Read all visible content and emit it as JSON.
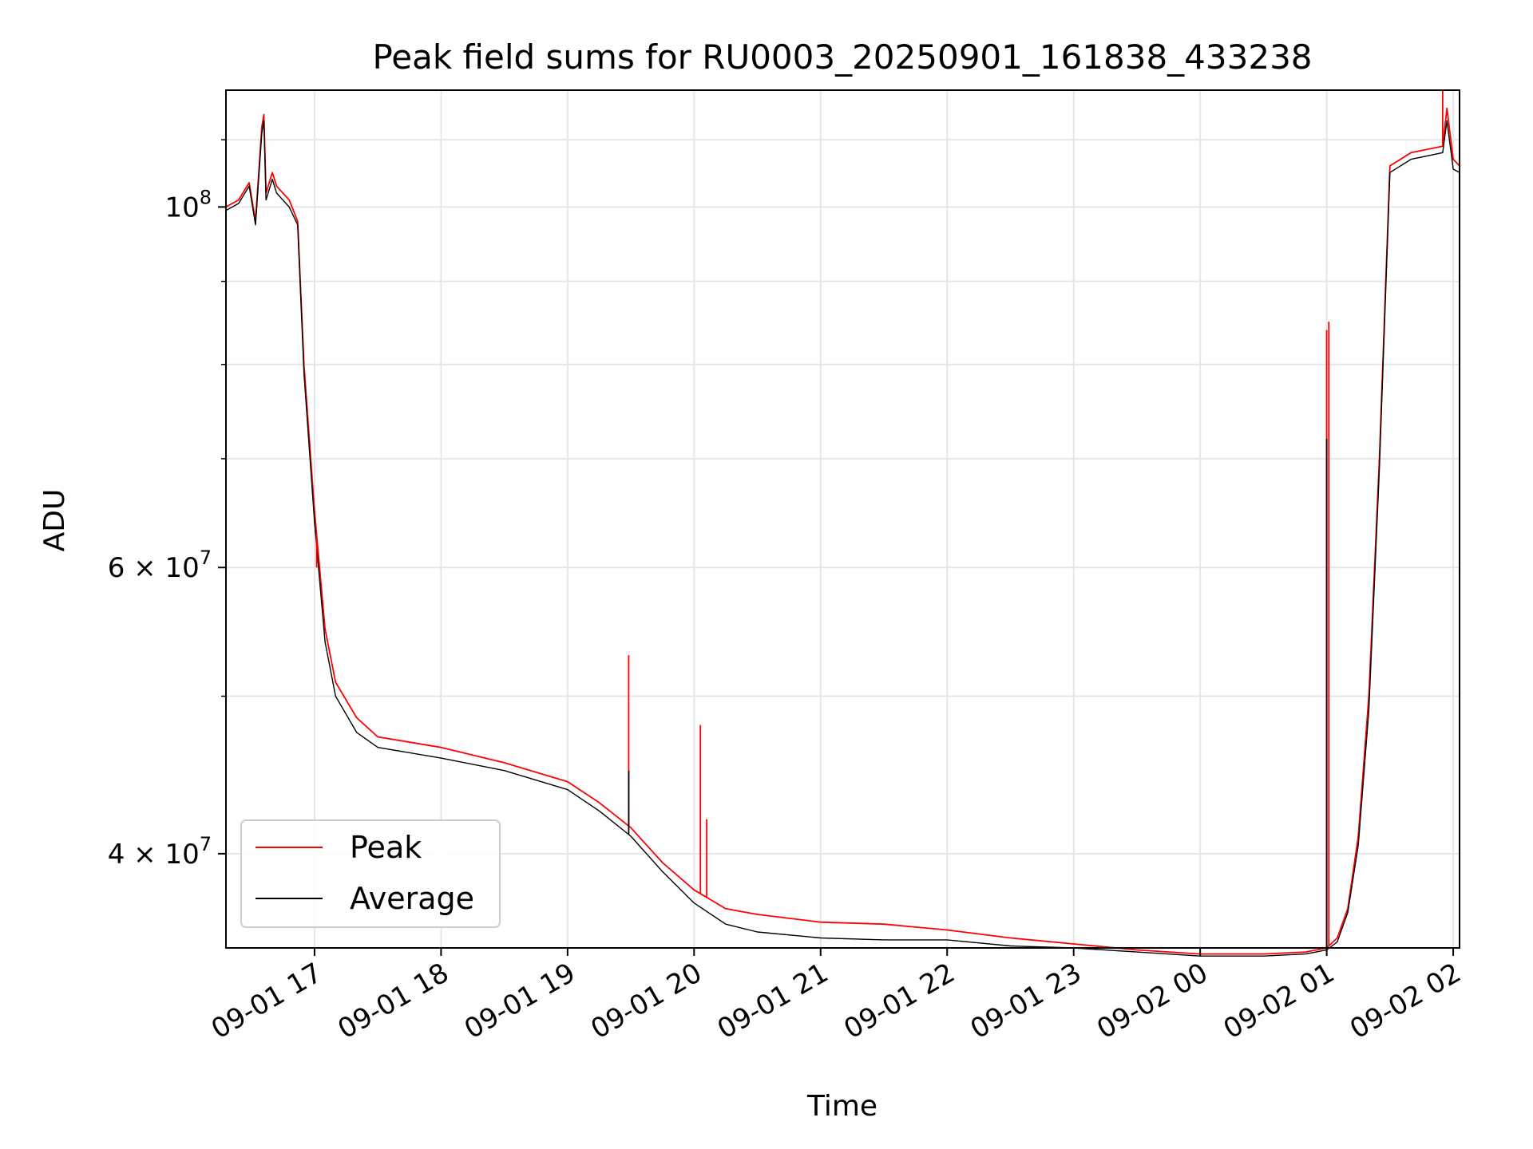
{
  "chart_data": {
    "type": "line",
    "title": "Peak field sums for RU0003_20250901_161838_433238",
    "xlabel": "Time",
    "ylabel": "ADU",
    "y_scale": "log",
    "x_range": [
      "09-01 16:18",
      "09-02 02:03"
    ],
    "y_range": [
      35000000,
      118000000
    ],
    "grid": true,
    "legend_position": "lower-left",
    "x_ticks": [
      "09-01 17",
      "09-01 18",
      "09-01 19",
      "09-01 20",
      "09-01 21",
      "09-01 22",
      "09-01 23",
      "09-02 00",
      "09-02 01",
      "09-02 02"
    ],
    "y_ticks": [
      {
        "value": 100000000,
        "mantissa": "",
        "exponent": "8"
      },
      {
        "value": 60000000,
        "mantissa": "6 × ",
        "exponent": "7"
      },
      {
        "value": 40000000,
        "mantissa": "4 × ",
        "exponent": "7"
      }
    ],
    "series": [
      {
        "name": "Peak",
        "color": "#ff0000",
        "x": [
          "09-01 16:18",
          "09-01 16:24",
          "09-01 16:29",
          "09-01 16:32",
          "09-01 16:35",
          "09-01 16:36",
          "09-01 16:37",
          "09-01 16:40",
          "09-01 16:42",
          "09-01 16:48",
          "09-01 16:52",
          "09-01 16:55",
          "09-01 17:00",
          "09-01 17:05",
          "09-01 17:10",
          "09-01 17:20",
          "09-01 17:30",
          "09-01 18:00",
          "09-01 18:30",
          "09-01 19:00",
          "09-01 19:15",
          "09-01 19:30",
          "09-01 19:45",
          "09-01 20:00",
          "09-01 20:15",
          "09-01 20:30",
          "09-01 21:00",
          "09-01 21:30",
          "09-01 22:00",
          "09-01 22:30",
          "09-01 23:00",
          "09-01 23:30",
          "09-02 00:00",
          "09-02 00:30",
          "09-02 00:50",
          "09-02 01:00",
          "09-02 01:05",
          "09-02 01:10",
          "09-02 01:15",
          "09-02 01:20",
          "09-02 01:25",
          "09-02 01:30",
          "09-02 01:40",
          "09-02 01:55",
          "09-02 01:57",
          "09-02 02:00",
          "09-02 02:03"
        ],
        "y": [
          100000000,
          101000000,
          103500000,
          98000000,
          112000000,
          114000000,
          102000000,
          105000000,
          103000000,
          101000000,
          98000000,
          80000000,
          65000000,
          55000000,
          51000000,
          48500000,
          47200000,
          46500000,
          45500000,
          44300000,
          43000000,
          41500000,
          39500000,
          38000000,
          37000000,
          36700000,
          36300000,
          36200000,
          35900000,
          35500000,
          35200000,
          34900000,
          34700000,
          34700000,
          34800000,
          35000000,
          35500000,
          37000000,
          41000000,
          50000000,
          70000000,
          106000000,
          108000000,
          109000000,
          115000000,
          107000000,
          106000000
        ]
      },
      {
        "name": "Average",
        "color": "#000000",
        "x": [
          "09-01 16:18",
          "09-01 16:24",
          "09-01 16:29",
          "09-01 16:32",
          "09-01 16:35",
          "09-01 16:36",
          "09-01 16:37",
          "09-01 16:40",
          "09-01 16:42",
          "09-01 16:48",
          "09-01 16:52",
          "09-01 16:55",
          "09-01 17:00",
          "09-01 17:05",
          "09-01 17:10",
          "09-01 17:20",
          "09-01 17:30",
          "09-01 18:00",
          "09-01 18:30",
          "09-01 19:00",
          "09-01 19:15",
          "09-01 19:30",
          "09-01 19:45",
          "09-01 20:00",
          "09-01 20:15",
          "09-01 20:30",
          "09-01 21:00",
          "09-01 21:30",
          "09-01 22:00",
          "09-01 22:30",
          "09-01 23:00",
          "09-01 23:30",
          "09-02 00:00",
          "09-02 00:30",
          "09-02 00:50",
          "09-02 01:00",
          "09-02 01:05",
          "09-02 01:10",
          "09-02 01:15",
          "09-02 01:20",
          "09-02 01:25",
          "09-02 01:30",
          "09-02 01:40",
          "09-02 01:55",
          "09-02 01:57",
          "09-02 02:00",
          "09-02 02:03"
        ],
        "y": [
          99500000,
          100500000,
          103000000,
          97500000,
          111000000,
          113000000,
          101000000,
          104000000,
          102000000,
          100000000,
          97500000,
          79000000,
          64000000,
          54000000,
          50000000,
          47500000,
          46500000,
          45800000,
          45000000,
          43800000,
          42500000,
          41000000,
          39000000,
          37300000,
          36200000,
          35800000,
          35500000,
          35400000,
          35400000,
          35100000,
          35000000,
          34800000,
          34600000,
          34600000,
          34700000,
          34900000,
          35300000,
          36800000,
          40500000,
          49000000,
          69000000,
          105000000,
          107000000,
          108000000,
          113000000,
          105500000,
          105000000
        ]
      }
    ],
    "spikes": [
      {
        "series": "Peak",
        "x": "09-01 17:01",
        "y": 60000000
      },
      {
        "series": "Peak",
        "x": "09-01 19:29",
        "y": 53000000
      },
      {
        "series": "Average",
        "x": "09-01 19:29",
        "y": 45000000
      },
      {
        "series": "Peak",
        "x": "09-01 20:03",
        "y": 48000000
      },
      {
        "series": "Peak",
        "x": "09-01 20:06",
        "y": 42000000
      },
      {
        "series": "Peak",
        "x": "09-02 01:00",
        "y": 84000000
      },
      {
        "series": "Average",
        "x": "09-02 01:00",
        "y": 72000000
      },
      {
        "series": "Peak",
        "x": "09-02 01:01",
        "y": 85000000
      },
      {
        "series": "Peak",
        "x": "09-02 01:55",
        "y": 118000000
      }
    ]
  }
}
